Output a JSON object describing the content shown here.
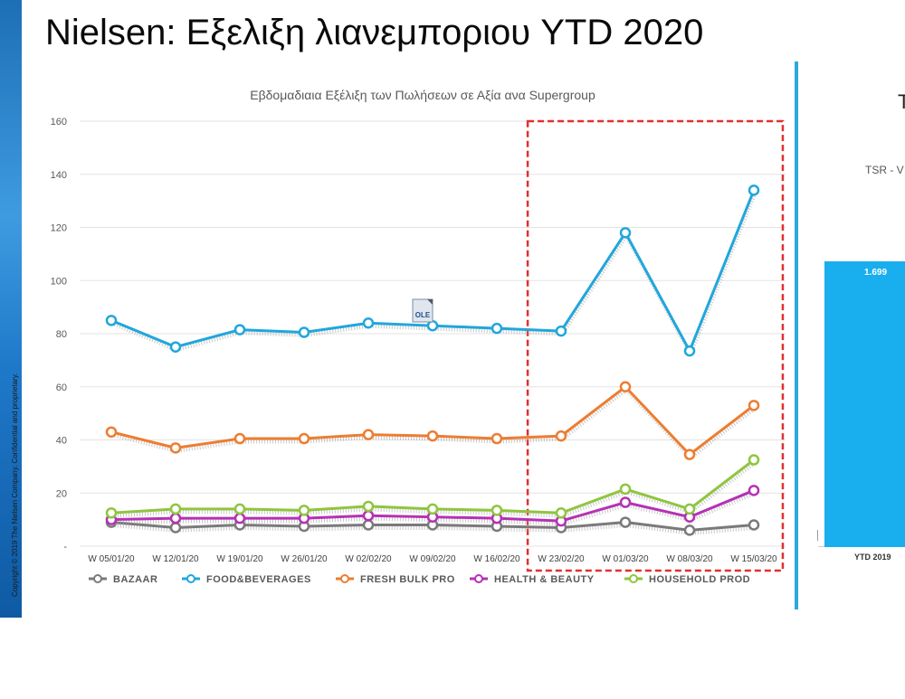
{
  "page": {
    "title": "Nielsen: Εξελιξη λιανεμποριου YTD 2020",
    "copyright": "Copyright © 2019 The Nielsen Company. Confidential and proprietary.",
    "ole_icon": "OLE"
  },
  "right_panel": {
    "mark": "T",
    "subtitle": "TSR - V",
    "bar_value": "1.699",
    "axis_label": "YTD 2019",
    "bar_color": "#19aeed"
  },
  "chart_data": {
    "type": "line",
    "title": "Εβδομαδιαια Εξέλιξη των Πωλήσεων σε Αξία ανα Supergroup",
    "xlabel": "",
    "ylabel": "",
    "ylim": [
      0,
      160
    ],
    "yticks": [
      0,
      20,
      40,
      60,
      80,
      100,
      120,
      140,
      160
    ],
    "ytick_labels": [
      "-",
      "20",
      "40",
      "60",
      "80",
      "100",
      "120",
      "140",
      "160"
    ],
    "grid": true,
    "legend_position": "bottom",
    "categories": [
      "W 05/01/20",
      "W 12/01/20",
      "W 19/01/20",
      "W 26/01/20",
      "W 02/02/20",
      "W 09/02/20",
      "W 16/02/20",
      "W 23/02/20",
      "W 01/03/20",
      "W 08/03/20",
      "W 15/03/20"
    ],
    "highlight": {
      "from": "W 23/02/20",
      "to": "W 15/03/20",
      "color": "#e03030"
    },
    "series": [
      {
        "name": "BAZAAR",
        "color": "#7a7a7a",
        "values": [
          9,
          7,
          8,
          7.5,
          8,
          8,
          7.5,
          7,
          9,
          6,
          8
        ]
      },
      {
        "name": "FOOD&BEVERAGES",
        "color": "#1fa7dc",
        "values": [
          85,
          75,
          81.5,
          80.5,
          84,
          83,
          82,
          81,
          118,
          73.5,
          134
        ]
      },
      {
        "name": "FRESH BULK PRO",
        "color": "#ed7d31",
        "values": [
          43,
          37,
          40.5,
          40.5,
          42,
          41.5,
          40.5,
          41.5,
          60,
          34.5,
          53
        ]
      },
      {
        "name": "HEALTH & BEAUTY",
        "color": "#b531b5",
        "values": [
          10,
          10.5,
          10.5,
          10.5,
          11.5,
          11,
          10.5,
          9.5,
          16.5,
          11,
          21
        ]
      },
      {
        "name": "HOUSEHOLD PROD",
        "color": "#8fc53e",
        "values": [
          12.5,
          14,
          14,
          13.5,
          15,
          14,
          13.5,
          12.5,
          21.5,
          14,
          32.5
        ]
      }
    ]
  }
}
